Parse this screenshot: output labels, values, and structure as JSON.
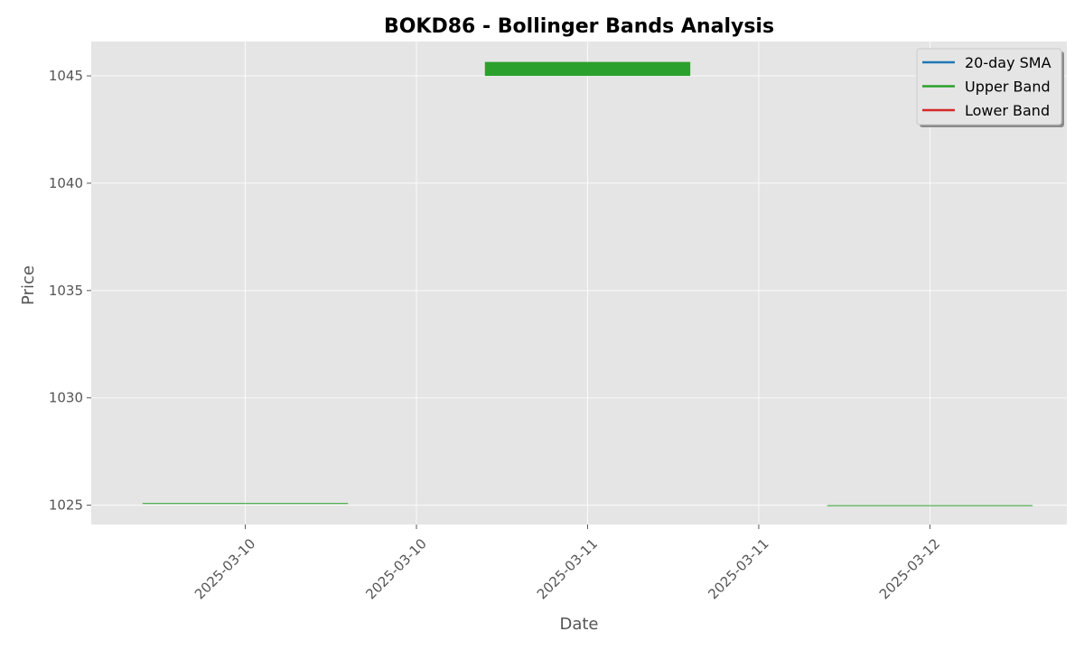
{
  "chart_data": {
    "type": "candlestick",
    "title": "BOKD86 - Bollinger Bands Analysis",
    "xlabel": "Date",
    "ylabel": "Price",
    "x_tick_labels": [
      "2025-03-10",
      "2025-03-10",
      "2025-03-11",
      "2025-03-11",
      "2025-03-12"
    ],
    "y_ticks": [
      1025,
      1030,
      1035,
      1040,
      1045
    ],
    "ylim": [
      1024.1,
      1046.6
    ],
    "xlim": [
      -0.65,
      2.2
    ],
    "x_tick_positions": [
      -0.2,
      0.3,
      0.8,
      1.3,
      1.8
    ],
    "candles": [
      {
        "x": -0.2,
        "date": "2025-03-10",
        "open": 1025.1,
        "close": 1025.1
      },
      {
        "x": 0.8,
        "date": "2025-03-11",
        "open": 1045.0,
        "close": 1045.65
      },
      {
        "x": 1.8,
        "date": "2025-03-12",
        "open": 1025.0,
        "close": 1025.0
      }
    ],
    "candle_width": 0.6,
    "candle_color": "#2ca02c",
    "legend": {
      "placement": "upper-right",
      "entries": [
        {
          "label": "20-day SMA",
          "color": "#1f77b4"
        },
        {
          "label": "Upper Band",
          "color": "#2ca02c"
        },
        {
          "label": "Lower Band",
          "color": "#d62728"
        }
      ]
    },
    "grid": true,
    "background": "#e5e5e5"
  }
}
